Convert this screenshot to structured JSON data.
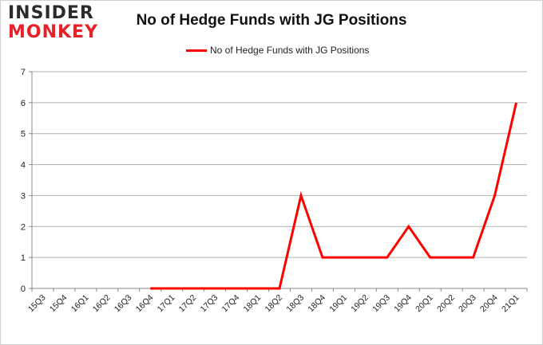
{
  "brand": {
    "line1": "INSIDER",
    "line2": "MONKEY"
  },
  "chart_data": {
    "type": "line",
    "title": "No of Hedge Funds with JG Positions",
    "categories": [
      "15Q3",
      "15Q4",
      "16Q1",
      "16Q2",
      "16Q3",
      "16Q4",
      "17Q1",
      "17Q2",
      "17Q3",
      "17Q4",
      "18Q1",
      "18Q2",
      "18Q3",
      "18Q4",
      "19Q1",
      "19Q2",
      "19Q3",
      "19Q4",
      "20Q1",
      "20Q2",
      "20Q3",
      "20Q4",
      "21Q1"
    ],
    "series": [
      {
        "name": "No of Hedge Funds with JG Positions",
        "color": "#ff0000",
        "values": [
          null,
          null,
          null,
          null,
          null,
          0,
          0,
          0,
          0,
          0,
          0,
          0,
          3,
          1,
          1,
          1,
          1,
          2,
          1,
          1,
          1,
          3,
          6
        ]
      }
    ],
    "ylim": [
      0,
      7
    ],
    "yticks": [
      0,
      1,
      2,
      3,
      4,
      5,
      6,
      7
    ],
    "grid": true,
    "legend": "top-center",
    "xlabel": "",
    "ylabel": ""
  }
}
